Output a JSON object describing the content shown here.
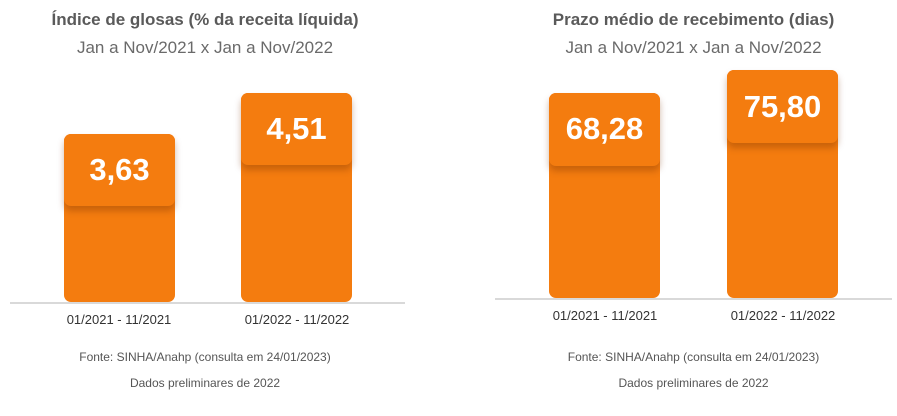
{
  "chart_data": [
    {
      "type": "bar",
      "title": "Índice de glosas (% da receita líquida)",
      "subtitle": "Jan a Nov/2021 x Jan a Nov/2022",
      "categories": [
        "01/2021 - 11/2021",
        "01/2022 - 11/2022"
      ],
      "values": [
        3.63,
        4.51
      ],
      "value_labels": [
        "3,63",
        "4,51"
      ],
      "source": "Fonte: SINHA/Anahp (consulta em 24/01/2023)",
      "note": "Dados preliminares de 2022",
      "bar_color": "#f47c0f",
      "grid": false
    },
    {
      "type": "bar",
      "title": "Prazo médio de recebimento (dias)",
      "subtitle": "Jan a Nov/2021 x Jan a Nov/2022",
      "categories": [
        "01/2021 - 11/2021",
        "01/2022 - 11/2022"
      ],
      "values": [
        68.28,
        75.8
      ],
      "value_labels": [
        "68,28",
        "75,80"
      ],
      "source": "Fonte: SINHA/Anahp (consulta em 24/01/2023)",
      "note": "Dados preliminares de 2022",
      "bar_color": "#f47c0f",
      "grid": false
    }
  ]
}
